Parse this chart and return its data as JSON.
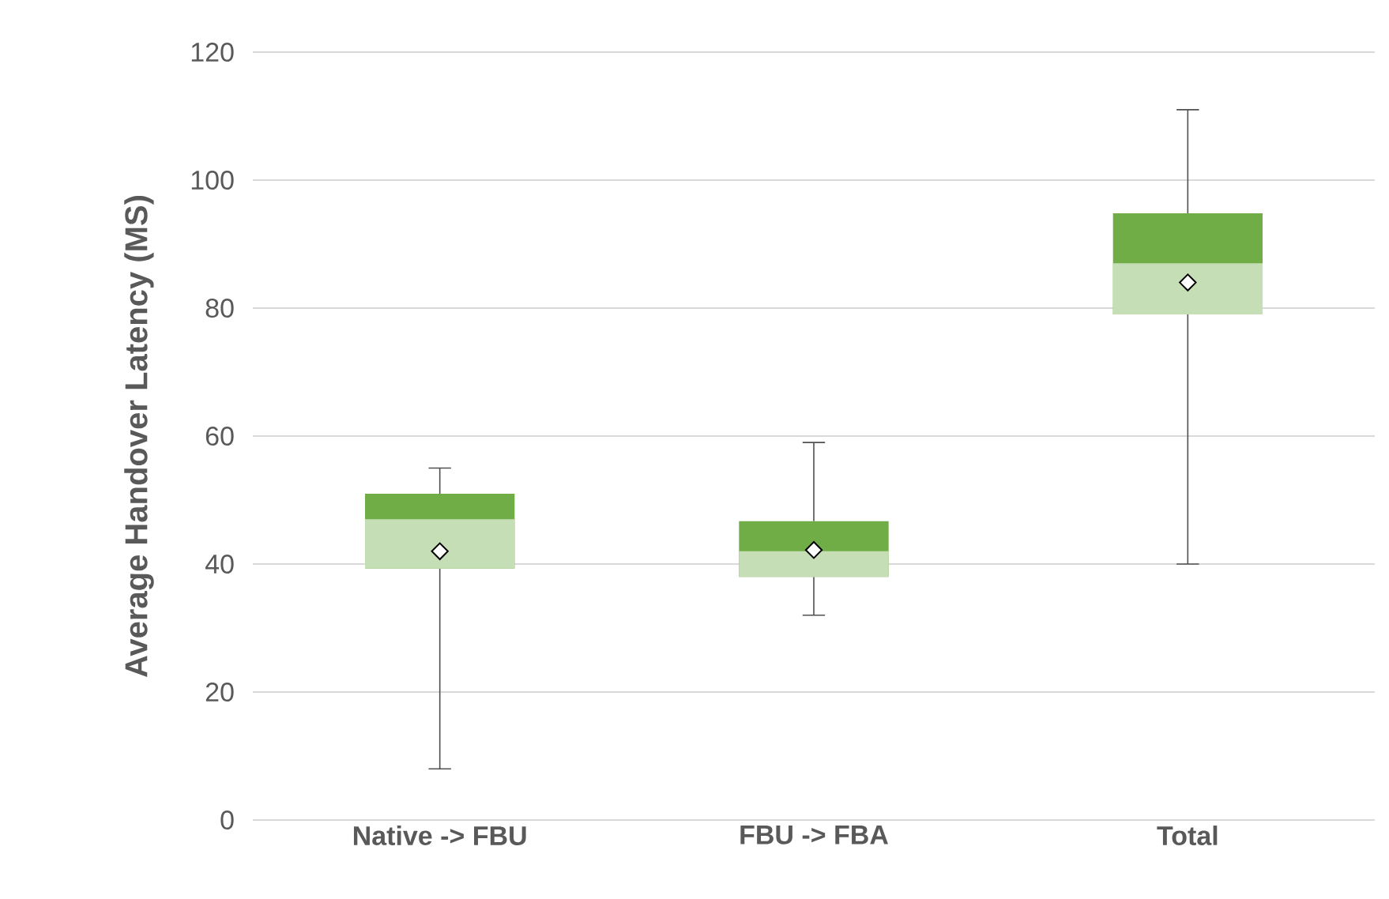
{
  "chart_data": {
    "type": "box",
    "ylabel": "Average Handover Latency (MS)",
    "categories": [
      "Native -> FBU",
      "FBU -> FBA",
      "Total"
    ],
    "color": "#70ad47",
    "boxes": [
      {
        "low": 8,
        "q1": 39.3,
        "median": 47,
        "q3": 51,
        "high": 55,
        "mean": 42
      },
      {
        "low": 32,
        "q1": 38,
        "median": 42,
        "q3": 46.7,
        "high": 59,
        "mean": 42.2
      },
      {
        "low": 40,
        "q1": 79,
        "median": 87,
        "q3": 94.8,
        "high": 111,
        "mean": 84
      }
    ],
    "ylim": [
      0,
      120
    ],
    "yticks": [
      0,
      20,
      40,
      60,
      80,
      100,
      120
    ],
    "grid": "y"
  }
}
